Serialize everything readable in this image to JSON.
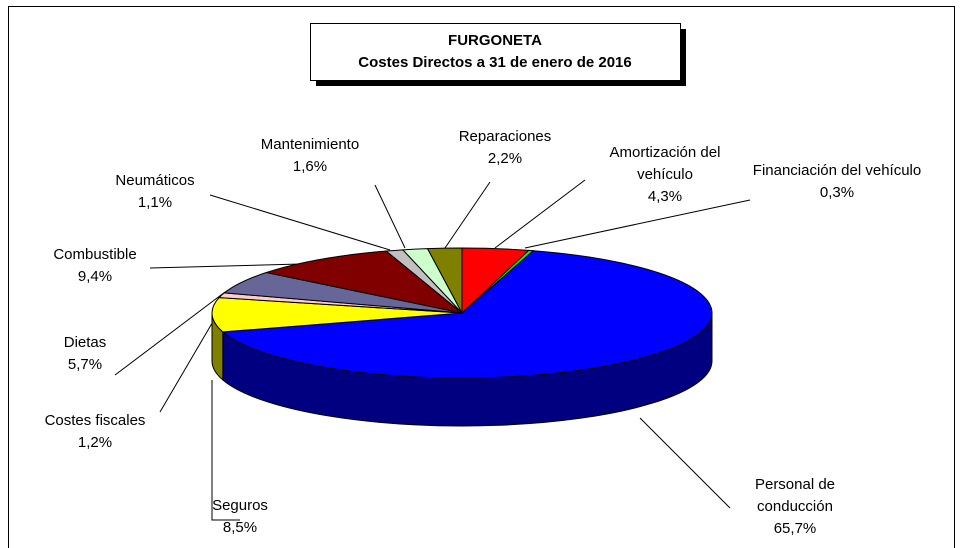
{
  "chart_data": {
    "type": "pie3d",
    "title": "FURGONETA",
    "subtitle": "Costes Directos a 31 de enero de 2016",
    "categories": [
      "Amortización del vehículo",
      "Financiación del vehículo",
      "Personal de conducción",
      "Seguros",
      "Costes fiscales",
      "Dietas",
      "Combustible",
      "Neumáticos",
      "Mantenimiento",
      "Reparaciones"
    ],
    "values": [
      4.3,
      0.3,
      65.7,
      8.5,
      1.2,
      5.7,
      9.4,
      1.1,
      1.6,
      2.2
    ],
    "value_labels": [
      "4,3%",
      "0,3%",
      "65,7%",
      "8,5%",
      "1,2%",
      "5,7%",
      "9,4%",
      "1,1%",
      "1,6%",
      "2,2%"
    ],
    "colors": [
      "#ff0000",
      "#00ff00",
      "#0000ff",
      "#ffff00",
      "#ffcccc",
      "#666699",
      "#800000",
      "#c0c0c0",
      "#ccffcc",
      "#808000"
    ]
  }
}
